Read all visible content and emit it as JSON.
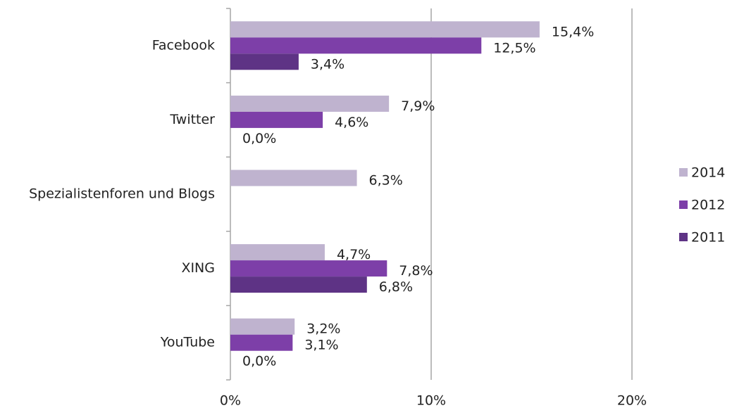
{
  "chart_data": {
    "type": "bar",
    "orientation": "horizontal",
    "categories": [
      "Facebook",
      "Twitter",
      "Spezialistenforen und Blogs",
      "XING",
      "YouTube"
    ],
    "series": [
      {
        "name": "2014",
        "color": "#bfb3cf",
        "values": [
          15.4,
          7.9,
          6.3,
          4.7,
          3.2
        ],
        "value_labels": [
          "15,4%",
          "7,9%",
          "6,3%",
          "4,7%",
          "3,2%"
        ]
      },
      {
        "name": "2012",
        "color": "#7d3fa8",
        "values": [
          12.5,
          4.6,
          null,
          7.8,
          3.1
        ],
        "value_labels": [
          "12,5%",
          "4,6%",
          null,
          "7,8%",
          "3,1%"
        ]
      },
      {
        "name": "2011",
        "color": "#5e3385",
        "values": [
          3.4,
          0.0,
          null,
          6.8,
          0.0
        ],
        "value_labels": [
          "3,4%",
          "0,0%",
          null,
          "6,8%",
          "0,0%"
        ]
      }
    ],
    "xlim": [
      0,
      20
    ],
    "xticks": [
      {
        "value": 0,
        "label": "0%"
      },
      {
        "value": 10,
        "label": "10%"
      },
      {
        "value": 20,
        "label": "20%"
      }
    ],
    "grid": true,
    "legend": "right"
  }
}
